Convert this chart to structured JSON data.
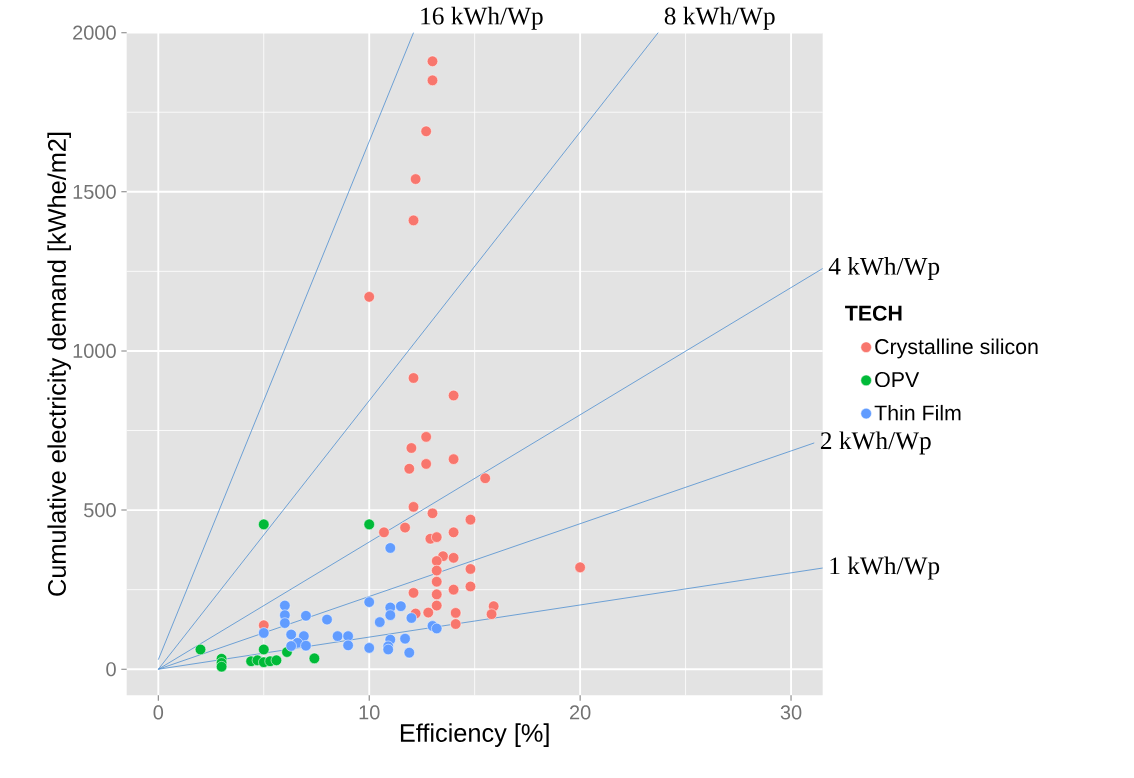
{
  "chart_data": {
    "type": "scatter",
    "xlabel": "Efficiency [%]",
    "ylabel": "Cumulative electricity demand [kWhe/m2]",
    "legend_title": "TECH",
    "grid": true,
    "legend": "right",
    "xlim": [
      -1.5,
      31.5
    ],
    "ylim": [
      -82,
      2000
    ],
    "xticks": [
      0,
      10,
      20,
      30
    ],
    "yticks": [
      0,
      500,
      1000,
      1500,
      2000
    ],
    "series": [
      {
        "name": "Crystalline silicon",
        "marker": "circle",
        "color": "#f8766d",
        "x": [
          13.0,
          13.0,
          12.7,
          12.2,
          12.1,
          10.0,
          12.1,
          14.0,
          12.7,
          12.0,
          12.7,
          11.9,
          14.0,
          15.5,
          12.1,
          13.0,
          14.8,
          10.7,
          11.7,
          12.9,
          13.2,
          14.0,
          13.5,
          14.0,
          13.2,
          13.2,
          13.2,
          14.8,
          14.8,
          12.1,
          14.0,
          13.2,
          13.2,
          12.2,
          12.8,
          14.1,
          14.1,
          15.9,
          15.8,
          5.0,
          20.0
        ],
        "values": [
          1910,
          1850,
          1690,
          1540,
          1410,
          1170,
          915,
          860,
          730,
          695,
          645,
          630,
          660,
          600,
          510,
          490,
          470,
          430,
          445,
          410,
          415,
          430,
          355,
          350,
          340,
          310,
          275,
          315,
          260,
          240,
          250,
          235,
          200,
          175,
          178,
          177,
          142,
          198,
          173,
          138,
          320
        ]
      },
      {
        "name": "OPV",
        "marker": "circle",
        "color": "#00ba38",
        "x": [
          5.0,
          10.0,
          2.0,
          3.0,
          3.0,
          3.0,
          5.0,
          4.4,
          4.7,
          5.0,
          5.3,
          5.6,
          6.1,
          7.4
        ],
        "values": [
          455,
          455,
          62,
          33,
          20,
          8,
          62,
          25,
          28,
          22,
          25,
          28,
          54,
          34
        ]
      },
      {
        "name": "Thin Film",
        "marker": "circle",
        "color": "#619cff",
        "x": [
          6.0,
          6.0,
          6.0,
          5.0,
          7.0,
          8.0,
          6.3,
          6.9,
          6.6,
          7.0,
          6.3,
          8.5,
          9.0,
          9.0,
          10.0,
          10.0,
          11.0,
          11.0,
          11.5,
          11.0,
          10.5,
          12.0,
          11.0,
          10.9,
          10.9,
          11.7,
          11.9,
          13.0,
          13.2
        ],
        "values": [
          200,
          170,
          145,
          114,
          168,
          156,
          109,
          104,
          83,
          74,
          73,
          104,
          104,
          75,
          67,
          211,
          381,
          194,
          198,
          170,
          148,
          161,
          93,
          72,
          62,
          96,
          52,
          136,
          128
        ]
      },
      {
        "name": "16 kWh/Wp",
        "type": "line",
        "marker": "none",
        "color": "#4f8fd0",
        "x": [
          0,
          12.1
        ],
        "values": [
          30,
          2000
        ]
      },
      {
        "name": "8 kWh/Wp",
        "type": "line",
        "marker": "none",
        "color": "#4f8fd0",
        "x": [
          0,
          23.7
        ],
        "values": [
          0,
          2000
        ]
      },
      {
        "name": "4 kWh/Wp",
        "type": "line",
        "marker": "none",
        "color": "#4f8fd0",
        "x": [
          0,
          31.5
        ],
        "values": [
          0,
          1259
        ]
      },
      {
        "name": "2 kWh/Wp",
        "type": "line",
        "marker": "none",
        "color": "#4f8fd0",
        "x": [
          0,
          31.1
        ],
        "values": [
          0,
          711
        ]
      },
      {
        "name": "1 kWh/Wp",
        "type": "line",
        "marker": "none",
        "color": "#4f8fd0",
        "x": [
          0,
          31.5
        ],
        "values": [
          0,
          318
        ]
      }
    ]
  }
}
